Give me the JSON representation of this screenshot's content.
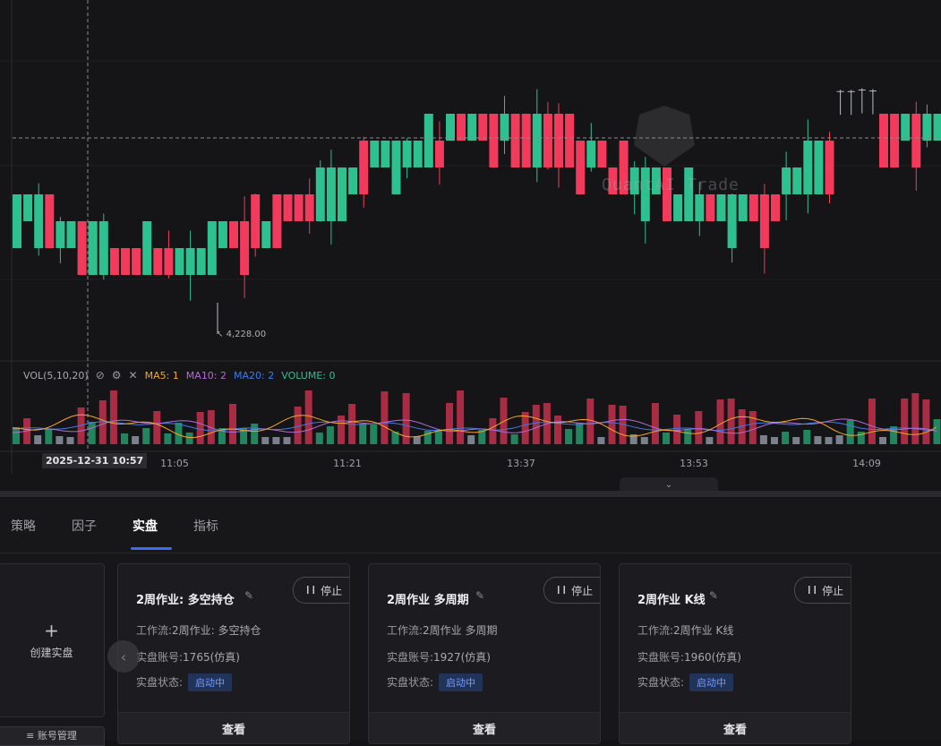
{
  "chart": {
    "low_label": "4,228.00",
    "watermark": "QuantAI Trade",
    "crosshair_time": "2025-12-31 10:57",
    "time_labels": [
      "11:05",
      "11:21",
      "13:37",
      "13:53",
      "14:09"
    ],
    "vol_legend": {
      "name": "VOL(5,10,20)",
      "ma5": "MA5: 1",
      "ma10": "MA10: 2",
      "ma20": "MA20: 2",
      "volume": "VOLUME: 0"
    },
    "colors": {
      "up": "#f23b5c",
      "down": "#2ec08e",
      "neutral": "#9aa1ad",
      "ma5": "#f5a623",
      "ma10": "#b36bd6",
      "ma20": "#3d7be8",
      "volume": "#2ec08e"
    },
    "icons": [
      "eye-off-icon",
      "gear-icon",
      "close-icon",
      "chevron-down-icon"
    ]
  },
  "tabs": [
    {
      "label": "策略"
    },
    {
      "label": "因子"
    },
    {
      "label": "实盘"
    },
    {
      "label": "指标"
    }
  ],
  "create_card": {
    "plus": "+",
    "label": "创建实盘"
  },
  "account_button": "≡ 账号管理",
  "labels": {
    "workflow": "工作流:",
    "account": "实盘账号:",
    "status": "实盘状态:",
    "stop": "停止",
    "view": "查看"
  },
  "cards": [
    {
      "title": "2周作业: 多空持仓",
      "workflow": "2周作业: 多空持仓",
      "account": "1765(仿真)",
      "status": "启动中"
    },
    {
      "title": "2周作业 多周期",
      "workflow": "2周作业 多周期",
      "account": "1927(仿真)",
      "status": "启动中"
    },
    {
      "title": "2周作业 K线",
      "workflow": "2周作业 K线",
      "account": "1960(仿真)",
      "status": "启动中"
    }
  ]
}
